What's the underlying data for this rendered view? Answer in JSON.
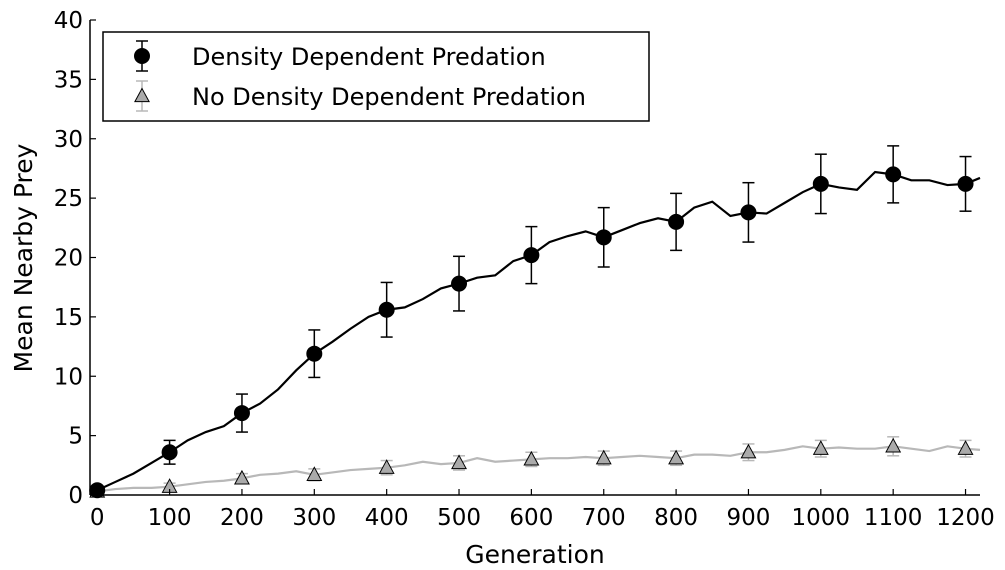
{
  "chart_data": {
    "type": "line",
    "xlabel": "Generation",
    "ylabel": "Mean Nearby Prey",
    "xlim": [
      -10,
      1220
    ],
    "ylim": [
      0,
      40
    ],
    "x_ticks": [
      0,
      100,
      200,
      300,
      400,
      500,
      600,
      700,
      800,
      900,
      1000,
      1100,
      1200
    ],
    "y_ticks": [
      0,
      5,
      10,
      15,
      20,
      25,
      30,
      35,
      40
    ],
    "x_tick_labels": [
      "0",
      "100",
      "200",
      "300",
      "400",
      "500",
      "600",
      "700",
      "800",
      "900",
      "1000",
      "1100",
      "1200"
    ],
    "y_tick_labels": [
      "0",
      "5",
      "10",
      "15",
      "20",
      "25",
      "30",
      "35",
      "40"
    ],
    "grid": false,
    "legend_position": "top-left",
    "series": [
      {
        "name": "Density Dependent Predation",
        "color": "#000000",
        "marker": "circle",
        "line": {
          "x": [
            0,
            25,
            50,
            75,
            100,
            125,
            150,
            175,
            200,
            225,
            250,
            275,
            300,
            325,
            350,
            375,
            400,
            425,
            450,
            475,
            500,
            525,
            550,
            575,
            600,
            625,
            650,
            675,
            700,
            725,
            750,
            775,
            800,
            825,
            850,
            875,
            900,
            925,
            950,
            975,
            1000,
            1025,
            1050,
            1075,
            1100,
            1125,
            1150,
            1175,
            1200,
            1220
          ],
          "y": [
            0.4,
            1.1,
            1.8,
            2.7,
            3.6,
            4.6,
            5.3,
            5.8,
            6.9,
            7.7,
            8.9,
            10.5,
            11.9,
            12.9,
            14.0,
            15.0,
            15.6,
            15.8,
            16.5,
            17.4,
            17.8,
            18.3,
            18.5,
            19.7,
            20.2,
            21.3,
            21.8,
            22.2,
            21.7,
            22.3,
            22.9,
            23.3,
            23.0,
            24.2,
            24.7,
            23.5,
            23.8,
            23.7,
            24.6,
            25.5,
            26.2,
            25.9,
            25.7,
            27.2,
            27.0,
            26.5,
            26.5,
            26.1,
            26.2,
            26.7
          ]
        },
        "points": {
          "x": [
            0,
            100,
            200,
            300,
            400,
            500,
            600,
            700,
            800,
            900,
            1000,
            1100,
            1200
          ],
          "y": [
            0.4,
            3.6,
            6.9,
            11.9,
            15.6,
            17.8,
            20.2,
            21.7,
            23.0,
            23.8,
            26.2,
            27.0,
            26.2
          ],
          "err": [
            0.3,
            1.0,
            1.6,
            2.0,
            2.3,
            2.3,
            2.4,
            2.5,
            2.4,
            2.5,
            2.5,
            2.4,
            2.3
          ]
        }
      },
      {
        "name": "No Density Dependent Predation",
        "color": "#b8b8b8",
        "marker_fill": "#aaaaaa",
        "marker": "triangle",
        "line": {
          "x": [
            0,
            25,
            50,
            75,
            100,
            125,
            150,
            175,
            200,
            225,
            250,
            275,
            300,
            325,
            350,
            375,
            400,
            425,
            450,
            475,
            500,
            525,
            550,
            575,
            600,
            625,
            650,
            675,
            700,
            725,
            750,
            775,
            800,
            825,
            850,
            875,
            900,
            925,
            950,
            975,
            1000,
            1025,
            1050,
            1075,
            1100,
            1125,
            1150,
            1175,
            1200,
            1220
          ],
          "y": [
            0.3,
            0.5,
            0.6,
            0.6,
            0.7,
            0.9,
            1.1,
            1.2,
            1.4,
            1.7,
            1.8,
            2.0,
            1.7,
            1.9,
            2.1,
            2.2,
            2.3,
            2.5,
            2.8,
            2.6,
            2.7,
            3.1,
            2.8,
            2.9,
            3.0,
            3.1,
            3.1,
            3.2,
            3.1,
            3.2,
            3.3,
            3.2,
            3.1,
            3.4,
            3.4,
            3.3,
            3.6,
            3.6,
            3.8,
            4.1,
            3.9,
            4.0,
            3.9,
            3.9,
            4.1,
            3.9,
            3.7,
            4.1,
            3.9,
            3.8
          ]
        },
        "points": {
          "x": [
            0,
            100,
            200,
            300,
            400,
            500,
            600,
            700,
            800,
            900,
            1000,
            1100,
            1200
          ],
          "y": [
            0.3,
            0.7,
            1.4,
            1.7,
            2.3,
            2.7,
            3.0,
            3.1,
            3.1,
            3.6,
            3.9,
            4.1,
            3.9
          ],
          "err": [
            0.2,
            0.3,
            0.4,
            0.5,
            0.6,
            0.6,
            0.6,
            0.6,
            0.6,
            0.7,
            0.7,
            0.8,
            0.7
          ]
        }
      }
    ]
  }
}
